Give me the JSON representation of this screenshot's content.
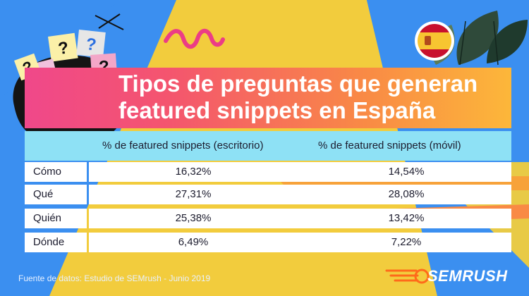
{
  "title": {
    "line1": "Tipos de preguntas que generan",
    "line2": "featured snippets en España"
  },
  "table": {
    "headers": [
      "% de featured snippets (escritorio)",
      "% de featured snippets (móvil)"
    ],
    "rows": [
      {
        "label": "Cómo",
        "desktop": "16,32%",
        "mobile": "14,54%"
      },
      {
        "label": "Qué",
        "desktop": "27,31%",
        "mobile": "28,08%"
      },
      {
        "label": "Quién",
        "desktop": "25,38%",
        "mobile": "13,42%"
      },
      {
        "label": "Dónde",
        "desktop": "6,49%",
        "mobile": "7,22%"
      }
    ]
  },
  "source": "Fuente de datos: Estudio de SEMrush - Junio 2019",
  "brand": "SEMRUSH",
  "colors": {
    "background": "#3b8ff0",
    "header_row": "#8ee1f5",
    "title_gradient_start": "#f0488a",
    "title_gradient_end": "#fcb73a",
    "accent_yellow": "#fcd033"
  },
  "icons": [
    "spain-flag-icon",
    "question-mark-notes-icon",
    "leaves-decoration-icon",
    "semrush-fire-logo-icon"
  ]
}
